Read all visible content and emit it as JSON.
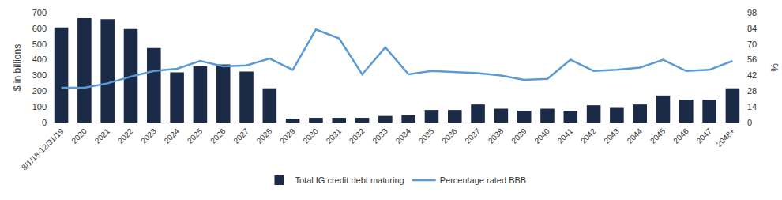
{
  "chart_data": {
    "type": "bar",
    "categories": [
      "8/1/18-12/31/19",
      "2020",
      "2021",
      "2022",
      "2023",
      "2024",
      "2025",
      "2026",
      "2027",
      "2028",
      "2029",
      "2030",
      "2031",
      "2032",
      "2033",
      "2034",
      "2035",
      "2036",
      "2037",
      "2038",
      "2039",
      "2040",
      "2041",
      "2042",
      "2043",
      "2044",
      "2045",
      "2046",
      "2047",
      "2048+"
    ],
    "series": [
      {
        "name": "Total IG credit debt maturing",
        "type": "bar",
        "color": "#1b2a47",
        "values": [
          605,
          665,
          658,
          595,
          475,
          320,
          358,
          370,
          325,
          218,
          25,
          30,
          30,
          30,
          42,
          48,
          80,
          80,
          115,
          88,
          75,
          88,
          75,
          110,
          98,
          115,
          172,
          145,
          145,
          218
        ]
      },
      {
        "name": "Percentage rated BBB",
        "type": "line",
        "color": "#5b9bd5",
        "axis": "y2",
        "values": [
          31,
          31,
          35,
          41,
          46,
          48,
          55,
          50,
          51,
          57,
          47,
          83,
          75,
          43,
          67,
          43,
          46,
          45,
          44,
          42,
          38,
          39,
          56,
          46,
          47,
          49,
          56,
          46,
          47,
          55
        ]
      }
    ],
    "y_label": "$ in billions",
    "y2_label": "%",
    "ylim": [
      0,
      700
    ],
    "yticks": [
      0,
      100,
      200,
      300,
      400,
      500,
      600,
      700
    ],
    "y2lim": [
      0,
      98
    ],
    "y2ticks": [
      0,
      14,
      28,
      42,
      56,
      70,
      84,
      98
    ],
    "grid": false,
    "legend": "bottom"
  }
}
